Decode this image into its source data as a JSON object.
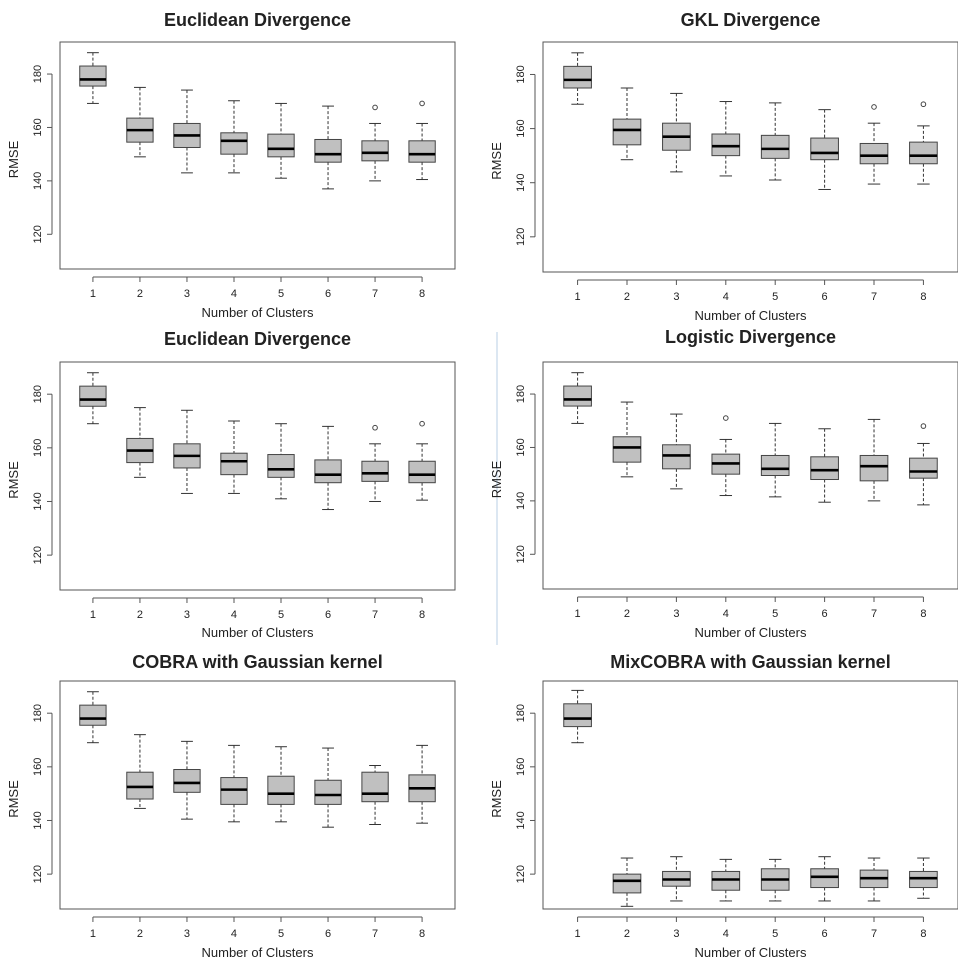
{
  "chart_data": [
    {
      "type": "boxplot",
      "title": "Euclidean Divergence",
      "xlabel": "Number of Clusters",
      "ylabel": "RMSE",
      "categories": [
        "1",
        "2",
        "3",
        "4",
        "5",
        "6",
        "7",
        "8"
      ],
      "yticks": [
        120,
        140,
        160,
        180
      ],
      "ylim": [
        107,
        192
      ],
      "boxes": [
        {
          "min": 169,
          "q1": 175.5,
          "median": 178,
          "q3": 183,
          "max": 188,
          "outliers": []
        },
        {
          "min": 149,
          "q1": 154.5,
          "median": 159,
          "q3": 163.5,
          "max": 175,
          "outliers": []
        },
        {
          "min": 143,
          "q1": 152.5,
          "median": 157,
          "q3": 161.5,
          "max": 174,
          "outliers": []
        },
        {
          "min": 143,
          "q1": 150,
          "median": 155,
          "q3": 158,
          "max": 170,
          "outliers": []
        },
        {
          "min": 141,
          "q1": 149,
          "median": 152,
          "q3": 157.5,
          "max": 169,
          "outliers": []
        },
        {
          "min": 137,
          "q1": 147,
          "median": 150,
          "q3": 155.5,
          "max": 168,
          "outliers": []
        },
        {
          "min": 140,
          "q1": 147.5,
          "median": 150.5,
          "q3": 155,
          "max": 161.5,
          "outliers": [
            167.5
          ]
        },
        {
          "min": 140.5,
          "q1": 147,
          "median": 150,
          "q3": 155,
          "max": 161.5,
          "outliers": [
            169
          ]
        }
      ]
    },
    {
      "type": "boxplot",
      "title": "GKL Divergence",
      "xlabel": "Number of Clusters",
      "ylabel": "RMSE",
      "categories": [
        "1",
        "2",
        "3",
        "4",
        "5",
        "6",
        "7",
        "8"
      ],
      "yticks": [
        120,
        140,
        160,
        180
      ],
      "ylim": [
        107,
        192
      ],
      "boxes": [
        {
          "min": 169,
          "q1": 175,
          "median": 178,
          "q3": 183,
          "max": 188,
          "outliers": []
        },
        {
          "min": 148.5,
          "q1": 154,
          "median": 159.5,
          "q3": 163.5,
          "max": 175,
          "outliers": []
        },
        {
          "min": 144,
          "q1": 152,
          "median": 157,
          "q3": 162,
          "max": 173,
          "outliers": []
        },
        {
          "min": 142.5,
          "q1": 150,
          "median": 153.5,
          "q3": 158,
          "max": 170,
          "outliers": []
        },
        {
          "min": 141,
          "q1": 149,
          "median": 152.5,
          "q3": 157.5,
          "max": 169.5,
          "outliers": []
        },
        {
          "min": 137.5,
          "q1": 148.5,
          "median": 151,
          "q3": 156.5,
          "max": 167,
          "outliers": []
        },
        {
          "min": 139.5,
          "q1": 147,
          "median": 150,
          "q3": 154.5,
          "max": 162,
          "outliers": [
            168
          ]
        },
        {
          "min": 139.5,
          "q1": 147,
          "median": 150,
          "q3": 155,
          "max": 161,
          "outliers": [
            169
          ]
        }
      ]
    },
    {
      "type": "boxplot",
      "title": "Euclidean Divergence",
      "xlabel": "Number of Clusters",
      "ylabel": "RMSE",
      "categories": [
        "1",
        "2",
        "3",
        "4",
        "5",
        "6",
        "7",
        "8"
      ],
      "yticks": [
        120,
        140,
        160,
        180
      ],
      "ylim": [
        107,
        192
      ],
      "boxes": [
        {
          "min": 169,
          "q1": 175.5,
          "median": 178,
          "q3": 183,
          "max": 188,
          "outliers": []
        },
        {
          "min": 149,
          "q1": 154.5,
          "median": 159,
          "q3": 163.5,
          "max": 175,
          "outliers": []
        },
        {
          "min": 143,
          "q1": 152.5,
          "median": 157,
          "q3": 161.5,
          "max": 174,
          "outliers": []
        },
        {
          "min": 143,
          "q1": 150,
          "median": 155,
          "q3": 158,
          "max": 170,
          "outliers": []
        },
        {
          "min": 141,
          "q1": 149,
          "median": 152,
          "q3": 157.5,
          "max": 169,
          "outliers": []
        },
        {
          "min": 137,
          "q1": 147,
          "median": 150,
          "q3": 155.5,
          "max": 168,
          "outliers": []
        },
        {
          "min": 140,
          "q1": 147.5,
          "median": 150.5,
          "q3": 155,
          "max": 161.5,
          "outliers": [
            167.5
          ]
        },
        {
          "min": 140.5,
          "q1": 147,
          "median": 150,
          "q3": 155,
          "max": 161.5,
          "outliers": [
            169
          ]
        }
      ]
    },
    {
      "type": "boxplot",
      "title": "Logistic Divergence",
      "xlabel": "Number of Clusters",
      "ylabel": "RMSE",
      "categories": [
        "1",
        "2",
        "3",
        "4",
        "5",
        "6",
        "7",
        "8"
      ],
      "yticks": [
        120,
        140,
        160,
        180
      ],
      "ylim": [
        107,
        192
      ],
      "boxes": [
        {
          "min": 169,
          "q1": 175.5,
          "median": 178,
          "q3": 183,
          "max": 188,
          "outliers": []
        },
        {
          "min": 149,
          "q1": 154.5,
          "median": 160,
          "q3": 164,
          "max": 177,
          "outliers": []
        },
        {
          "min": 144.5,
          "q1": 152,
          "median": 157,
          "q3": 161,
          "max": 172.5,
          "outliers": []
        },
        {
          "min": 142,
          "q1": 150,
          "median": 154,
          "q3": 157.5,
          "max": 163,
          "outliers": [
            171
          ]
        },
        {
          "min": 141.5,
          "q1": 149.5,
          "median": 152,
          "q3": 157,
          "max": 169,
          "outliers": []
        },
        {
          "min": 139.5,
          "q1": 148,
          "median": 151.5,
          "q3": 156.5,
          "max": 167,
          "outliers": []
        },
        {
          "min": 140,
          "q1": 147.5,
          "median": 153,
          "q3": 157,
          "max": 170.5,
          "outliers": []
        },
        {
          "min": 138.5,
          "q1": 148.5,
          "median": 151,
          "q3": 156,
          "max": 161.5,
          "outliers": [
            168
          ]
        }
      ]
    },
    {
      "type": "boxplot",
      "title": "COBRA with Gaussian kernel",
      "xlabel": "Number of Clusters",
      "ylabel": "RMSE",
      "categories": [
        "1",
        "2",
        "3",
        "4",
        "5",
        "6",
        "7",
        "8"
      ],
      "yticks": [
        120,
        140,
        160,
        180
      ],
      "ylim": [
        107,
        192
      ],
      "boxes": [
        {
          "min": 169,
          "q1": 175.5,
          "median": 178,
          "q3": 183,
          "max": 188,
          "outliers": []
        },
        {
          "min": 144.5,
          "q1": 148,
          "median": 152.5,
          "q3": 158,
          "max": 172,
          "outliers": []
        },
        {
          "min": 140.5,
          "q1": 150.5,
          "median": 154,
          "q3": 159,
          "max": 169.5,
          "outliers": []
        },
        {
          "min": 139.5,
          "q1": 146,
          "median": 151.5,
          "q3": 156,
          "max": 168,
          "outliers": []
        },
        {
          "min": 139.5,
          "q1": 146,
          "median": 150,
          "q3": 156.5,
          "max": 167.5,
          "outliers": []
        },
        {
          "min": 137.5,
          "q1": 146,
          "median": 149.5,
          "q3": 155,
          "max": 167,
          "outliers": []
        },
        {
          "min": 138.5,
          "q1": 147,
          "median": 150,
          "q3": 158,
          "max": 160.5,
          "outliers": []
        },
        {
          "min": 139,
          "q1": 147,
          "median": 152,
          "q3": 157,
          "max": 168,
          "outliers": []
        }
      ]
    },
    {
      "type": "boxplot",
      "title": "MixCOBRA with Gaussian kernel",
      "xlabel": "Number of Clusters",
      "ylabel": "RMSE",
      "categories": [
        "1",
        "2",
        "3",
        "4",
        "5",
        "6",
        "7",
        "8"
      ],
      "yticks": [
        120,
        140,
        160,
        180
      ],
      "ylim": [
        107,
        192
      ],
      "boxes": [
        {
          "min": 169,
          "q1": 175,
          "median": 178,
          "q3": 183.5,
          "max": 188.5,
          "outliers": []
        },
        {
          "min": 108,
          "q1": 113,
          "median": 117.5,
          "q3": 120,
          "max": 126,
          "outliers": []
        },
        {
          "min": 110,
          "q1": 115.5,
          "median": 118,
          "q3": 121,
          "max": 126.5,
          "outliers": []
        },
        {
          "min": 110,
          "q1": 114,
          "median": 118,
          "q3": 121,
          "max": 125.5,
          "outliers": []
        },
        {
          "min": 110,
          "q1": 114,
          "median": 118,
          "q3": 122,
          "max": 125.5,
          "outliers": []
        },
        {
          "min": 110,
          "q1": 115,
          "median": 119,
          "q3": 122,
          "max": 126.5,
          "outliers": []
        },
        {
          "min": 110,
          "q1": 115,
          "median": 118.5,
          "q3": 121.5,
          "max": 126,
          "outliers": []
        },
        {
          "min": 111,
          "q1": 115,
          "median": 118.5,
          "q3": 121,
          "max": 126,
          "outliers": []
        }
      ]
    }
  ]
}
